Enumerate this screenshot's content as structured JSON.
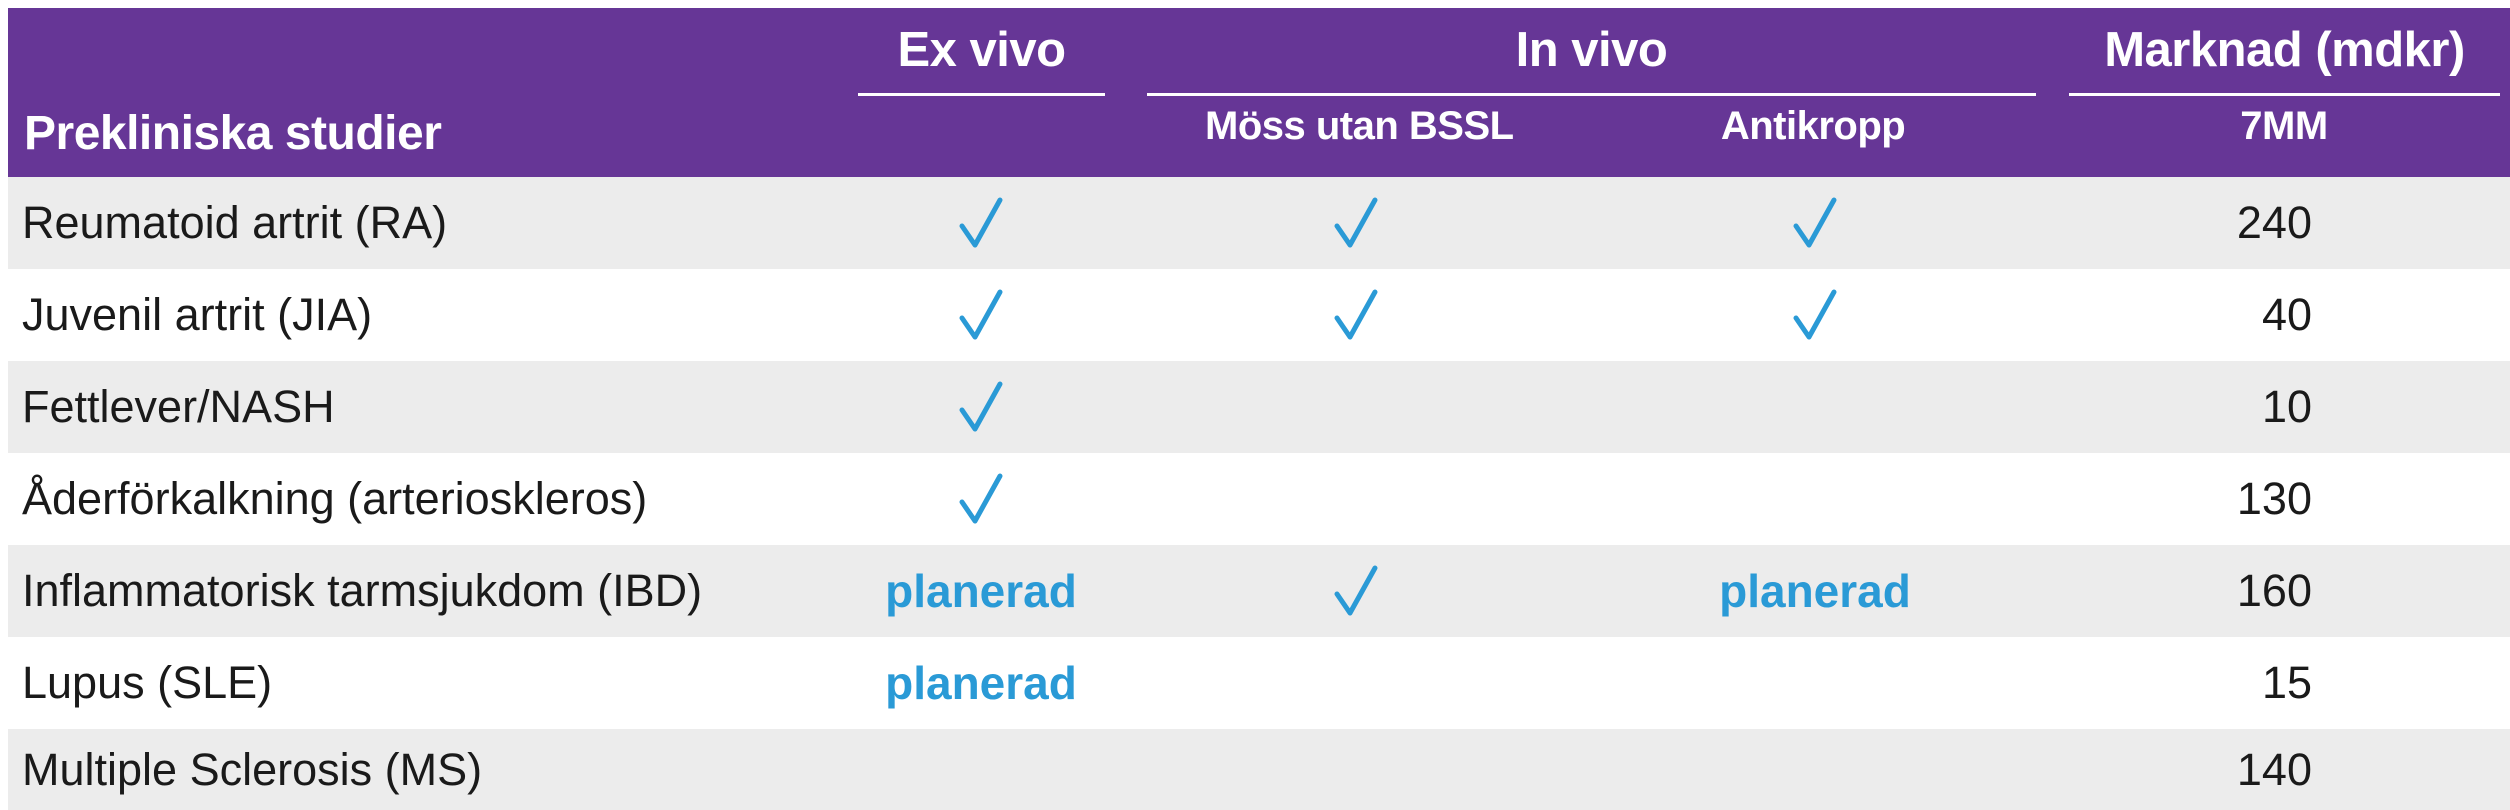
{
  "header": {
    "title": "Prekliniska studier",
    "groups": {
      "ex_vivo": "Ex vivo",
      "in_vivo": "In vivo",
      "market": "Marknad (mdkr)"
    },
    "subheaders": {
      "mice": "Möss utan BSSL",
      "antibody": "Antikropp",
      "market": "7MM"
    }
  },
  "colors": {
    "header_bg": "#663696",
    "accent": "#2a9ad6",
    "row_shade": "#ececec"
  },
  "icons": {
    "check": "checkmark-icon"
  },
  "rows": [
    {
      "label": "Reumatoid artrit (RA)",
      "ex_vivo": "check",
      "mice": "check",
      "antibody": "check",
      "market": "240"
    },
    {
      "label": "Juvenil artrit (JIA)",
      "ex_vivo": "check",
      "mice": "check",
      "antibody": "check",
      "market": "40"
    },
    {
      "label": "Fettlever/NASH",
      "ex_vivo": "check",
      "mice": "",
      "antibody": "",
      "market": "10"
    },
    {
      "label": "Åderförkalkning (arterioskleros)",
      "ex_vivo": "check",
      "mice": "",
      "antibody": "",
      "market": "130"
    },
    {
      "label": "Inflammatorisk tarmsjukdom (IBD)",
      "ex_vivo": "planerad",
      "mice": "check",
      "antibody": "planerad",
      "market": "160"
    },
    {
      "label": "Lupus (SLE)",
      "ex_vivo": "planerad",
      "mice": "",
      "antibody": "",
      "market": "15"
    },
    {
      "label": "Multiple Sclerosis (MS)",
      "ex_vivo": "",
      "mice": "",
      "antibody": "",
      "market": "140"
    }
  ]
}
